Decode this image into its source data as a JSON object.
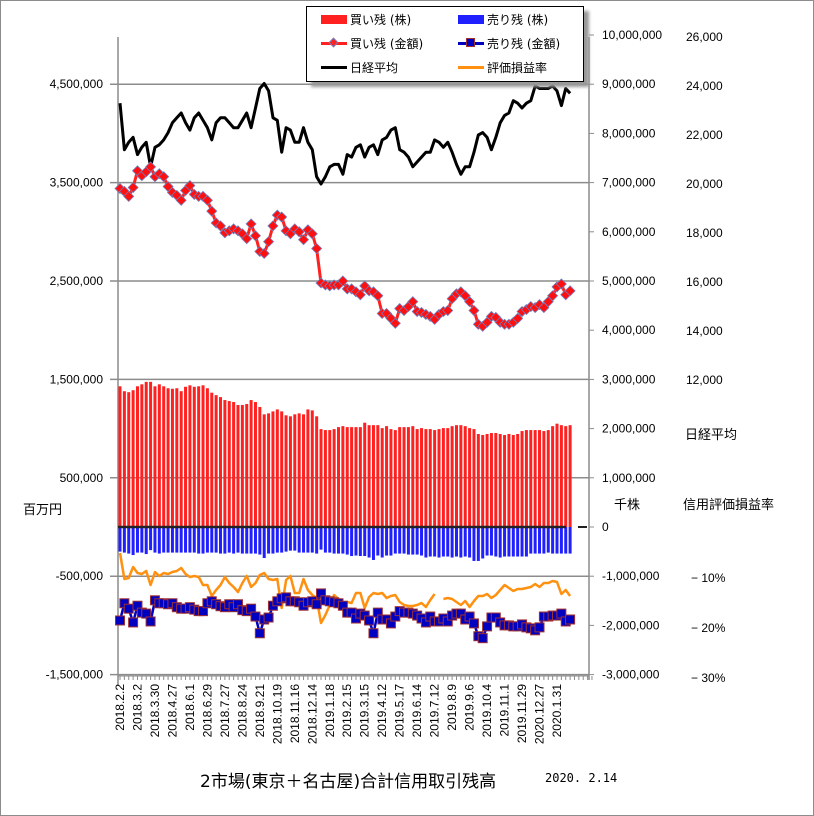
{
  "chart_data": {
    "type": "bar+line",
    "title": "2市場(東京＋名古屋)合計信用取引残高",
    "date": "2020. 2.14",
    "axes": {
      "left": {
        "unit": "百万円",
        "range": [
          -1500000,
          5000000
        ],
        "ticks": [
          {
            "v": 4500000,
            "label": "4,500,000"
          },
          {
            "v": 3500000,
            "label": "3,500,000"
          },
          {
            "v": 2500000,
            "label": "2,500,000"
          },
          {
            "v": 1500000,
            "label": "1,500,000"
          },
          {
            "v": 500000,
            "label": "500,000"
          },
          {
            "v": -500000,
            "label": "-500,000"
          },
          {
            "v": -1500000,
            "label": "-1,500,000"
          }
        ]
      },
      "shares": {
        "unit": "千株",
        "range": [
          -3000000,
          10000000
        ],
        "ticks": [
          {
            "v": 10000000,
            "label": "10,000,000"
          },
          {
            "v": 9000000,
            "label": "9,000,000"
          },
          {
            "v": 8000000,
            "label": "8,000,000"
          },
          {
            "v": 7000000,
            "label": "7,000,000"
          },
          {
            "v": 6000000,
            "label": "6,000,000"
          },
          {
            "v": 5000000,
            "label": "5,000,000"
          },
          {
            "v": 4000000,
            "label": "4,000,000"
          },
          {
            "v": 3000000,
            "label": "3,000,000"
          },
          {
            "v": 2000000,
            "label": "2,000,000"
          },
          {
            "v": 1000000,
            "label": "1,000,000"
          },
          {
            "v": 0,
            "label": "0"
          },
          {
            "v": -1000000,
            "label": "-1,000,000"
          },
          {
            "v": -2000000,
            "label": "-2,000,000"
          },
          {
            "v": -3000000,
            "label": "-3,000,000"
          }
        ]
      },
      "nikkei": {
        "unit": "日経平均",
        "ticks": [
          {
            "v": 26000,
            "label": "26,000"
          },
          {
            "v": 24000,
            "label": "24,000"
          },
          {
            "v": 22000,
            "label": "22,000"
          },
          {
            "v": 20000,
            "label": "20,000"
          },
          {
            "v": 18000,
            "label": "18,000"
          },
          {
            "v": 16000,
            "label": "16,000"
          },
          {
            "v": 14000,
            "label": "14,000"
          },
          {
            "v": 12000,
            "label": "12,000"
          }
        ]
      },
      "rate": {
        "unit": "信用評価損益率",
        "ticks": [
          {
            "v": -10,
            "label": "− 10%"
          },
          {
            "v": -20,
            "label": "− 20%"
          },
          {
            "v": -30,
            "label": "− 30%"
          }
        ]
      }
    },
    "x_tick_labels": [
      "2018.2.2",
      "2018.3.2",
      "2018.3.30",
      "2018.4.27",
      "2018.6.1",
      "2018.6.29",
      "2018.7.27",
      "2018.8.24",
      "2018.9.21",
      "2018.10.19",
      "2018.11.16",
      "2018.12.14",
      "2019.1.18",
      "2019.2.15",
      "2019.3.15",
      "2019.4.12",
      "2019.5.17",
      "2019.6.14",
      "2019.7.12",
      "2019.8.9",
      "2019.9.6",
      "2019.10.4",
      "2019.11.1",
      "2019.11.29",
      "2020.12.27",
      "2020.1.31"
    ],
    "grid": "horizontal",
    "legend_position": "top-center",
    "series": [
      {
        "name": "買い残 (株)",
        "type": "bar",
        "axis": "shares",
        "color": "#ff2020",
        "values": [
          2860000,
          2760000,
          2740000,
          2780000,
          2860000,
          2900000,
          2950000,
          2950000,
          2860000,
          2900000,
          2860000,
          2820000,
          2810000,
          2820000,
          2760000,
          2850000,
          2880000,
          2850000,
          2860000,
          2880000,
          2820000,
          2730000,
          2680000,
          2640000,
          2580000,
          2560000,
          2540000,
          2480000,
          2480000,
          2500000,
          2580000,
          2540000,
          2440000,
          2290000,
          2310000,
          2350000,
          2390000,
          2350000,
          2270000,
          2250000,
          2290000,
          2310000,
          2290000,
          2390000,
          2370000,
          2250000,
          1990000,
          1970000,
          1970000,
          1990000,
          2030000,
          2050000,
          2030000,
          2030000,
          2030000,
          2030000,
          2120000,
          2070000,
          2070000,
          2070000,
          2010000,
          2050000,
          1990000,
          1970000,
          2030000,
          2030000,
          2030000,
          2050000,
          1990000,
          2010000,
          1990000,
          1990000,
          1970000,
          1990000,
          2010000,
          2010000,
          2050000,
          2070000,
          2070000,
          2050000,
          2010000,
          1990000,
          1890000,
          1870000,
          1890000,
          1910000,
          1910000,
          1890000,
          1870000,
          1890000,
          1870000,
          1890000,
          1950000,
          1970000,
          1970000,
          1970000,
          1970000,
          1950000,
          1970000,
          2050000,
          2100000,
          2070000,
          2050000,
          2070000
        ]
      },
      {
        "name": "売り残 (株)",
        "type": "bar",
        "axis": "shares",
        "color": "#2020ff",
        "values": [
          -500000,
          -520000,
          -540000,
          -570000,
          -520000,
          -520000,
          -550000,
          -470000,
          -520000,
          -540000,
          -520000,
          -520000,
          -520000,
          -520000,
          -520000,
          -520000,
          -520000,
          -520000,
          -540000,
          -540000,
          -520000,
          -520000,
          -520000,
          -540000,
          -540000,
          -520000,
          -540000,
          -520000,
          -540000,
          -540000,
          -540000,
          -540000,
          -560000,
          -630000,
          -540000,
          -540000,
          -520000,
          -520000,
          -500000,
          -480000,
          -480000,
          -520000,
          -520000,
          -520000,
          -520000,
          -540000,
          -460000,
          -520000,
          -520000,
          -540000,
          -540000,
          -540000,
          -560000,
          -590000,
          -580000,
          -590000,
          -590000,
          -620000,
          -670000,
          -580000,
          -620000,
          -580000,
          -580000,
          -540000,
          -540000,
          -540000,
          -560000,
          -560000,
          -560000,
          -580000,
          -620000,
          -600000,
          -600000,
          -620000,
          -600000,
          -600000,
          -620000,
          -600000,
          -620000,
          -600000,
          -620000,
          -690000,
          -690000,
          -640000,
          -580000,
          -580000,
          -600000,
          -620000,
          -600000,
          -600000,
          -600000,
          -600000,
          -600000,
          -600000,
          -540000,
          -540000,
          -540000,
          -540000,
          -520000,
          -540000,
          -540000,
          -540000,
          -540000,
          -540000
        ]
      },
      {
        "name": "買い残 (金額)",
        "type": "line",
        "axis": "left",
        "color": "#ff2020",
        "marker": "diamond",
        "values": [
          3440000,
          3410000,
          3360000,
          3450000,
          3620000,
          3570000,
          3610000,
          3660000,
          3560000,
          3590000,
          3560000,
          3460000,
          3400000,
          3370000,
          3320000,
          3420000,
          3470000,
          3380000,
          3360000,
          3360000,
          3320000,
          3210000,
          3090000,
          3060000,
          2990000,
          3010000,
          3030000,
          3010000,
          2980000,
          2930000,
          3080000,
          2960000,
          2800000,
          2780000,
          2900000,
          3060000,
          3170000,
          3150000,
          3010000,
          2980000,
          3030000,
          3000000,
          2920000,
          3020000,
          2980000,
          2830000,
          2480000,
          2460000,
          2450000,
          2460000,
          2460000,
          2500000,
          2420000,
          2420000,
          2390000,
          2360000,
          2450000,
          2400000,
          2390000,
          2350000,
          2170000,
          2170000,
          2120000,
          2070000,
          2220000,
          2200000,
          2240000,
          2290000,
          2190000,
          2180000,
          2160000,
          2140000,
          2110000,
          2160000,
          2190000,
          2200000,
          2320000,
          2370000,
          2390000,
          2350000,
          2290000,
          2200000,
          2060000,
          2040000,
          2080000,
          2140000,
          2130000,
          2080000,
          2060000,
          2060000,
          2080000,
          2120000,
          2190000,
          2210000,
          2240000,
          2230000,
          2260000,
          2230000,
          2290000,
          2350000,
          2440000,
          2470000,
          2360000,
          2400000
        ]
      },
      {
        "name": "売り残 (金額)",
        "type": "line",
        "axis": "left",
        "color": "#0000c0",
        "marker": "square",
        "values": [
          -950000,
          -775000,
          -830000,
          -970000,
          -800000,
          -870000,
          -880000,
          -960000,
          -745000,
          -775000,
          -775000,
          -785000,
          -775000,
          -815000,
          -830000,
          -830000,
          -815000,
          -840000,
          -855000,
          -855000,
          -775000,
          -755000,
          -785000,
          -805000,
          -815000,
          -785000,
          -815000,
          -785000,
          -845000,
          -855000,
          -830000,
          -910000,
          -1080000,
          -940000,
          -920000,
          -800000,
          -755000,
          -725000,
          -715000,
          -755000,
          -755000,
          -765000,
          -800000,
          -765000,
          -755000,
          -785000,
          -675000,
          -745000,
          -755000,
          -765000,
          -775000,
          -800000,
          -870000,
          -870000,
          -930000,
          -880000,
          -900000,
          -950000,
          -1080000,
          -870000,
          -940000,
          -940000,
          -980000,
          -910000,
          -855000,
          -870000,
          -870000,
          -880000,
          -900000,
          -930000,
          -970000,
          -910000,
          -960000,
          -960000,
          -930000,
          -960000,
          -900000,
          -880000,
          -880000,
          -940000,
          -910000,
          -980000,
          -1110000,
          -1130000,
          -1010000,
          -920000,
          -920000,
          -970000,
          -1000000,
          -1000000,
          -1010000,
          -1010000,
          -990000,
          -1020000,
          -1030000,
          -1050000,
          -1020000,
          -910000,
          -910000,
          -900000,
          -900000,
          -880000,
          -960000,
          -940000
        ]
      },
      {
        "name": "日経平均",
        "type": "line",
        "axis": "nikkei",
        "color": "#000000",
        "values": [
          23300,
          21400,
          21700,
          21900,
          21200,
          21500,
          21700,
          20700,
          21500,
          21600,
          21800,
          22100,
          22500,
          22700,
          22900,
          22500,
          22200,
          22700,
          22900,
          22600,
          22300,
          21800,
          22500,
          22700,
          22700,
          22500,
          22300,
          22300,
          22600,
          22900,
          22300,
          23100,
          23900,
          24100,
          23800,
          22700,
          22600,
          21300,
          22300,
          22200,
          21700,
          21700,
          22300,
          21700,
          21400,
          20300,
          20000,
          20300,
          20700,
          20800,
          20800,
          20400,
          21200,
          21100,
          21500,
          21600,
          21100,
          21500,
          21600,
          21200,
          21800,
          21900,
          22200,
          22300,
          21400,
          21300,
          21100,
          20700,
          20900,
          21100,
          21300,
          21300,
          21800,
          21700,
          21500,
          21700,
          21300,
          20800,
          20400,
          20700,
          20700,
          21300,
          22000,
          22100,
          21900,
          21400,
          21900,
          22500,
          22800,
          22900,
          23400,
          23300,
          23100,
          23300,
          23400,
          24000,
          23900,
          23900,
          23900,
          24000,
          23800,
          23200,
          23900,
          23700
        ]
      },
      {
        "name": "評価損益率",
        "type": "line",
        "axis": "rate",
        "color": "#ff9010",
        "values": [
          -5.2,
          -10.4,
          -10.2,
          -8.0,
          -9.2,
          -9.4,
          -8.8,
          -11.6,
          -9.0,
          -9.8,
          -9.2,
          -9.4,
          -9.0,
          -8.8,
          -8.2,
          -9.4,
          -10.0,
          -9.8,
          -10.0,
          -11.6,
          -11.6,
          -13.8,
          -12.6,
          -11.6,
          -10.0,
          -11.2,
          -12.0,
          -13.0,
          -11.2,
          -9.8,
          -12.0,
          -11.2,
          -9.6,
          -9.2,
          -10.4,
          -10.6,
          -10.4,
          -16.2,
          -10.6,
          -9.8,
          -13.2,
          -13.2,
          -10.4,
          -12.6,
          -13.6,
          -14.2,
          -19.2,
          -17.6,
          -15.6,
          -13.6,
          -14.4,
          -16.2,
          -15.0,
          -15.2,
          -13.2,
          -13.2,
          -16.2,
          -14.0,
          -13.2,
          -13.4,
          -13.2,
          -14.2,
          -13.8,
          -13.6,
          -15.0,
          -15.6,
          -15.8,
          -15.8,
          -15.6,
          -15.2,
          -16.0,
          -14.6,
          -13.4,
          null,
          -14.4,
          -14.2,
          -14.4,
          -15.0,
          -15.6,
          -14.8,
          -16.0,
          -14.8,
          -13.8,
          -13.8,
          -13.4,
          -14.2,
          -13.6,
          -12.6,
          -11.6,
          -12.2,
          -12.8,
          -12.4,
          -12.4,
          -12.2,
          -12.0,
          -11.4,
          -12.0,
          -11.2,
          -11.2,
          -10.8,
          -11.0,
          -13.4,
          -12.6,
          -13.8
        ]
      }
    ]
  }
}
